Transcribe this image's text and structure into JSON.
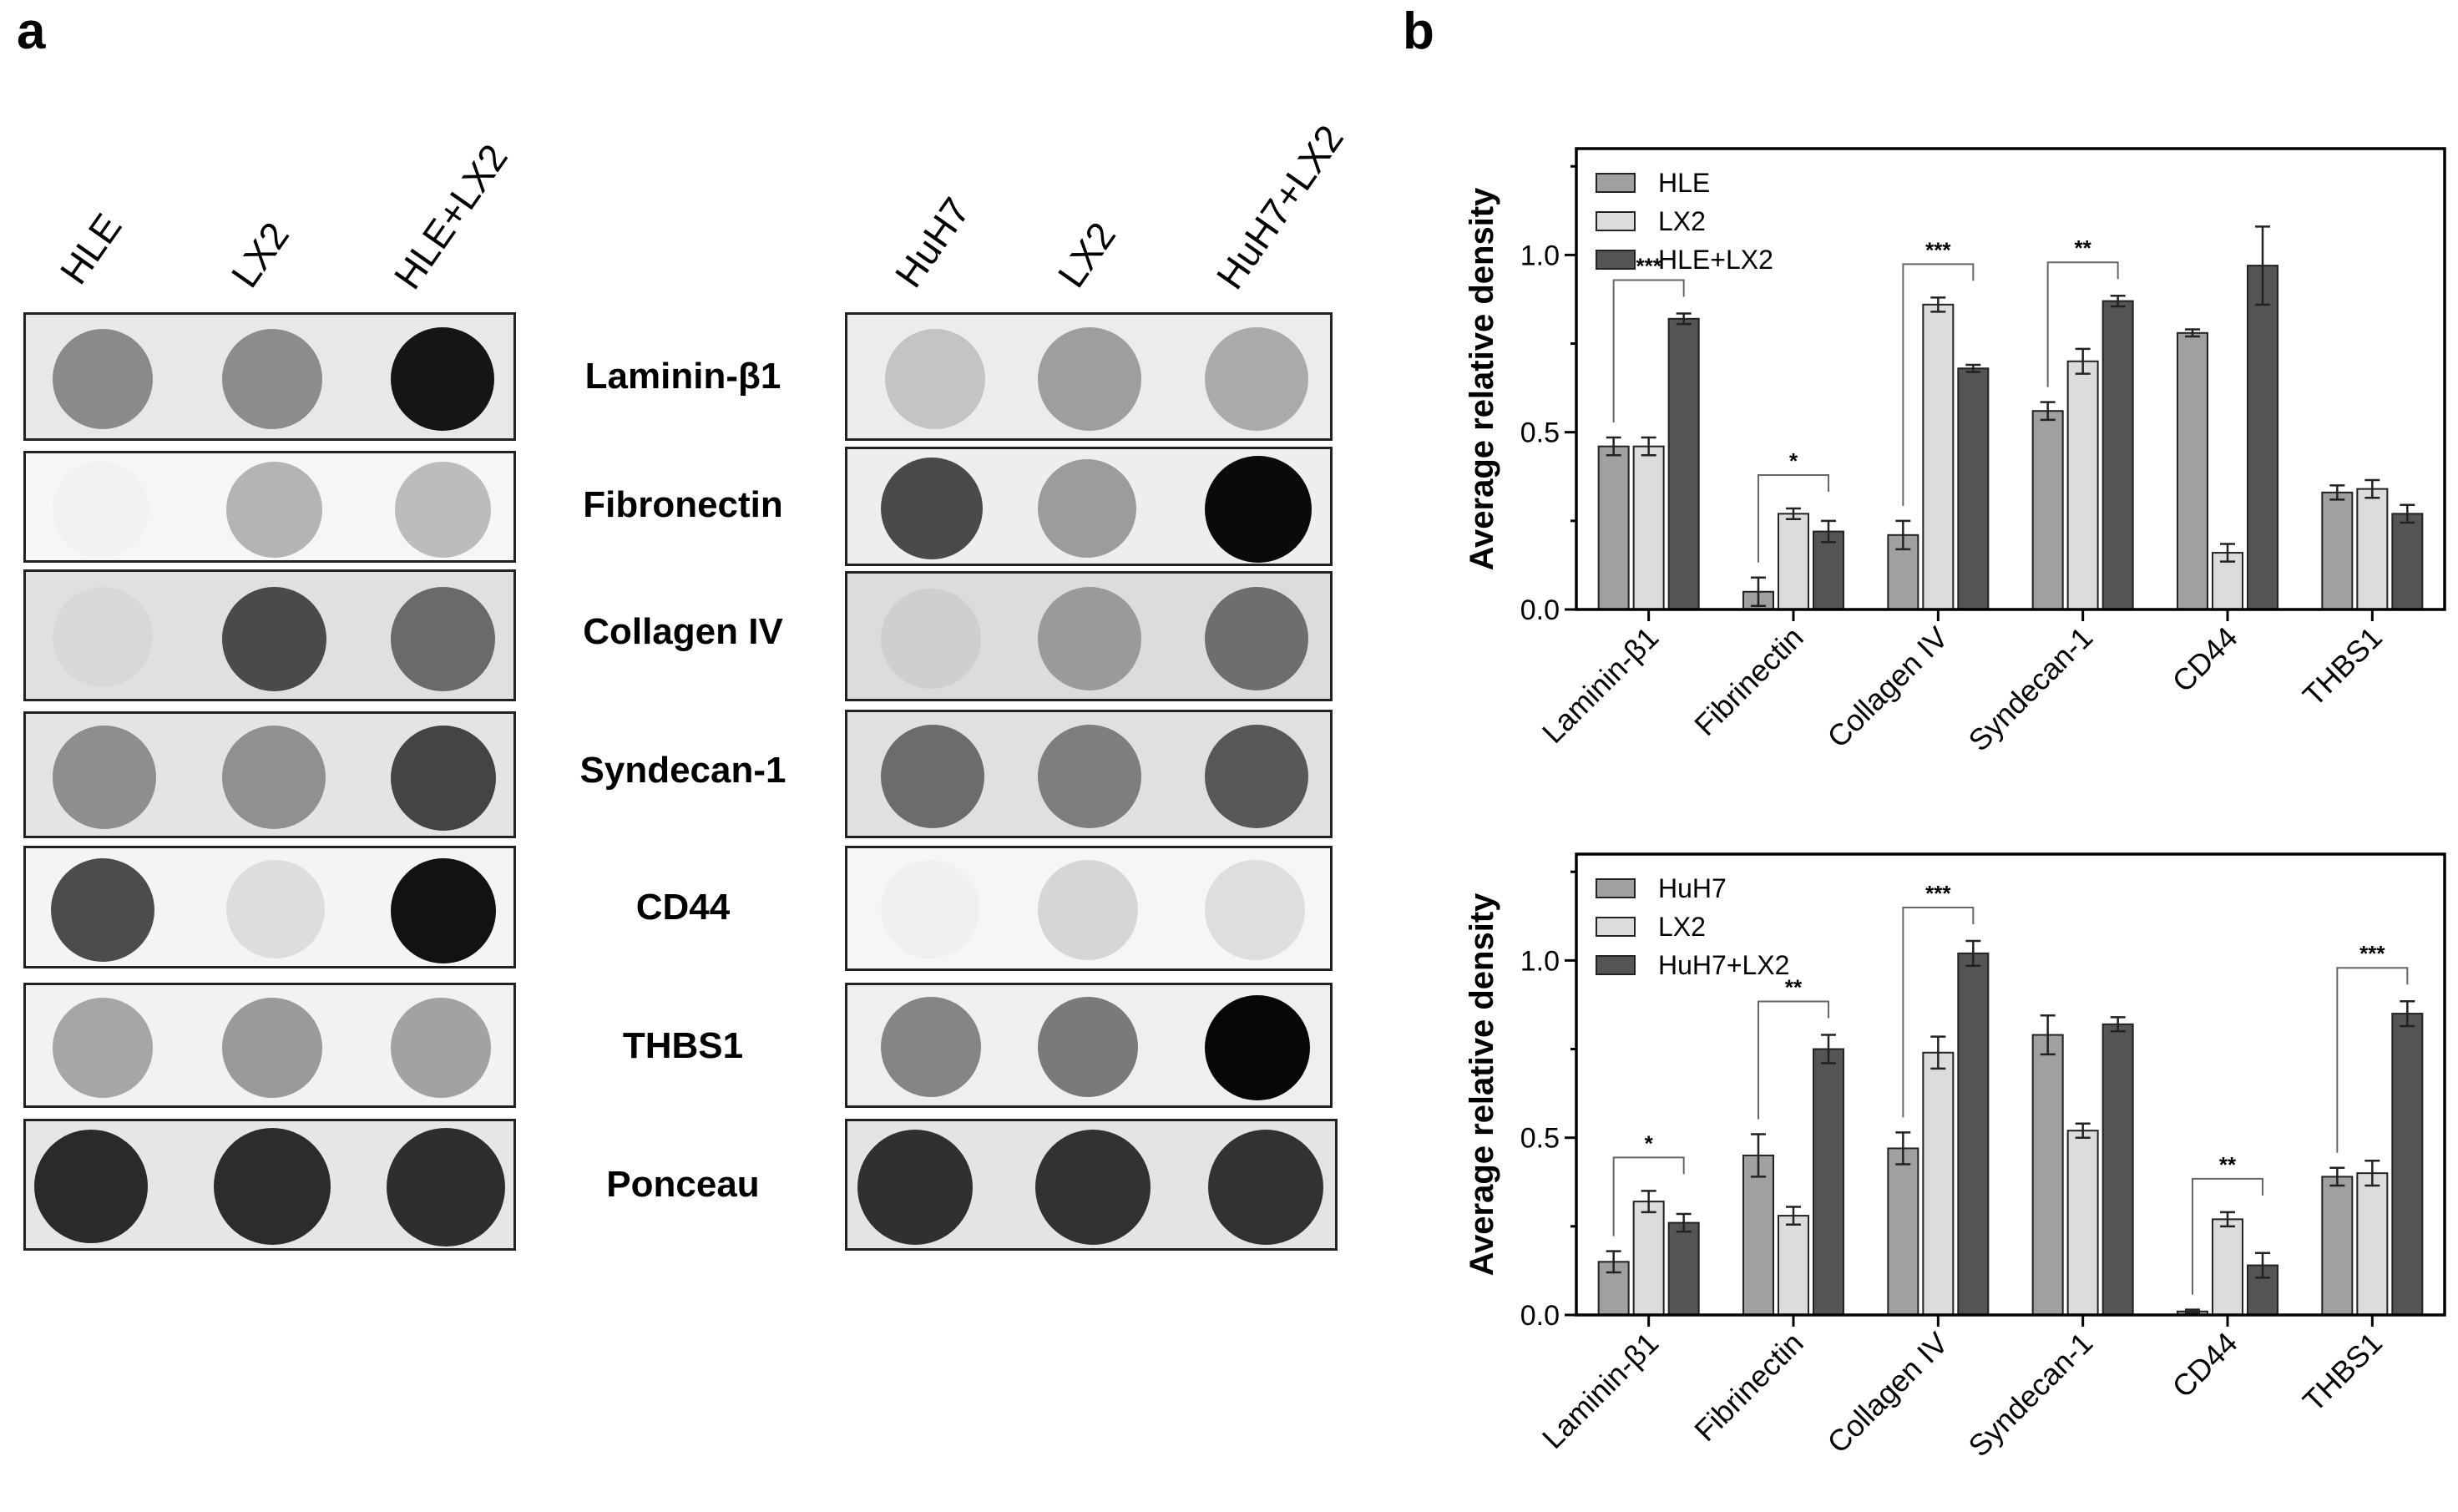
{
  "panel_a": {
    "letter": "a",
    "left_columns": [
      "HLE",
      "LX2",
      "HLE+LX2"
    ],
    "right_columns": [
      "HuH7",
      "LX2",
      "HuH7+LX2"
    ],
    "rows": [
      "Laminin-β1",
      "Fibronectin",
      "Collagen IV",
      "Syndecan-1",
      "CD44",
      "THBS1",
      "Ponceau"
    ]
  },
  "panel_b": {
    "letter": "b"
  },
  "chart_data": [
    {
      "type": "bar",
      "ylabel": "Average relative density",
      "ylim": [
        0,
        1.3
      ],
      "yticks": [
        "0.0",
        "0.5",
        "1.0"
      ],
      "categories": [
        "Laminin-β1",
        "Fibrinectin",
        "Collagen IV",
        "Syndecan-1",
        "CD44",
        "THBS1"
      ],
      "legend_position": "top-left",
      "series": [
        {
          "name": "HLE",
          "color": "#a0a0a0",
          "values": [
            0.46,
            0.05,
            0.21,
            0.56,
            0.78,
            0.33
          ],
          "errors": [
            0.025,
            0.04,
            0.04,
            0.025,
            0.01,
            0.02
          ]
        },
        {
          "name": "LX2",
          "color": "#dcdcdc",
          "values": [
            0.46,
            0.27,
            0.86,
            0.7,
            0.16,
            0.34
          ],
          "errors": [
            0.025,
            0.015,
            0.02,
            0.035,
            0.025,
            0.025
          ]
        },
        {
          "name": "HLE+LX2",
          "color": "#555555",
          "values": [
            0.82,
            0.22,
            0.68,
            0.87,
            0.97,
            0.27
          ],
          "errors": [
            0.015,
            0.03,
            0.01,
            0.015,
            0.11,
            0.025
          ]
        }
      ],
      "significance": [
        {
          "category": 0,
          "from": 0,
          "to": 2,
          "label": "***"
        },
        {
          "category": 1,
          "from": 0,
          "to": 2,
          "label": "*"
        },
        {
          "category": 2,
          "from": 0,
          "to": 2,
          "label": "***"
        },
        {
          "category": 3,
          "from": 0,
          "to": 2,
          "label": "**"
        }
      ]
    },
    {
      "type": "bar",
      "ylabel": "Average relative density",
      "ylim": [
        0,
        1.3
      ],
      "yticks": [
        "0.0",
        "0.5",
        "1.0"
      ],
      "categories": [
        "Laminin-β1",
        "Fibrinectin",
        "Collagen IV",
        "Syndecan-1",
        "CD44",
        "THBS1"
      ],
      "legend_position": "top-left",
      "series": [
        {
          "name": "HuH7",
          "color": "#a0a0a0",
          "values": [
            0.15,
            0.45,
            0.47,
            0.79,
            0.01,
            0.39
          ],
          "errors": [
            0.03,
            0.06,
            0.045,
            0.055,
            0.005,
            0.025
          ]
        },
        {
          "name": "LX2",
          "color": "#dcdcdc",
          "values": [
            0.32,
            0.28,
            0.74,
            0.52,
            0.27,
            0.4
          ],
          "errors": [
            0.03,
            0.025,
            0.045,
            0.02,
            0.02,
            0.035
          ]
        },
        {
          "name": "HuH7+LX2",
          "color": "#555555",
          "values": [
            0.26,
            0.75,
            1.02,
            0.82,
            0.14,
            0.85
          ],
          "errors": [
            0.025,
            0.04,
            0.035,
            0.02,
            0.035,
            0.035
          ]
        }
      ],
      "significance": [
        {
          "category": 0,
          "from": 0,
          "to": 2,
          "label": "*"
        },
        {
          "category": 1,
          "from": 0,
          "to": 2,
          "label": "**"
        },
        {
          "category": 2,
          "from": 0,
          "to": 2,
          "label": "***"
        },
        {
          "category": 4,
          "from": 0,
          "to": 2,
          "label": "**"
        },
        {
          "category": 5,
          "from": 0,
          "to": 2,
          "label": "***"
        }
      ]
    }
  ]
}
